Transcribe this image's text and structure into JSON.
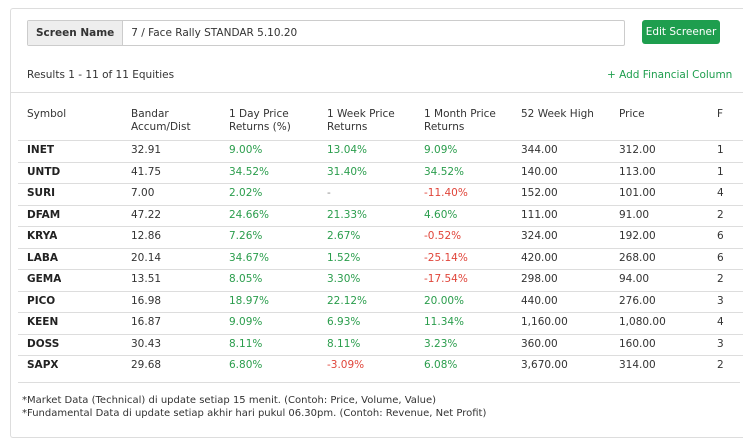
{
  "screen_name_label": "Screen Name",
  "screen_name_value": "7 / Face Rally STANDAR 5.10.20",
  "edit_button": "Edit Screener",
  "results_text": "Results 1 - 11 of 11 Equities",
  "add_column": "Add Financial Column",
  "table": {
    "headers": [
      "Symbol",
      "Bandar Accum/Dist",
      "1 Day Price Returns (%)",
      "1 Week Price Returns",
      "1 Month Price Returns",
      "52 Week High",
      "Price",
      "F"
    ],
    "rows": [
      [
        "INET",
        "32.91",
        "9.00%",
        "13.04%",
        "9.09%",
        "344.00",
        "312.00",
        "1"
      ],
      [
        "UNTD",
        "41.75",
        "34.52%",
        "31.40%",
        "34.52%",
        "140.00",
        "113.00",
        "1"
      ],
      [
        "SURI",
        "7.00",
        "2.02%",
        "-",
        "-11.40%",
        "152.00",
        "101.00",
        "4"
      ],
      [
        "DFAM",
        "47.22",
        "24.66%",
        "21.33%",
        "4.60%",
        "111.00",
        "91.00",
        "2"
      ],
      [
        "KRYA",
        "12.86",
        "7.26%",
        "2.67%",
        "-0.52%",
        "324.00",
        "192.00",
        "6"
      ],
      [
        "LABA",
        "20.14",
        "34.67%",
        "1.52%",
        "-25.14%",
        "420.00",
        "268.00",
        "6"
      ],
      [
        "GEMA",
        "13.51",
        "8.05%",
        "3.30%",
        "-17.54%",
        "298.00",
        "94.00",
        "2"
      ],
      [
        "PICO",
        "16.98",
        "18.97%",
        "22.12%",
        "20.00%",
        "440.00",
        "276.00",
        "3"
      ],
      [
        "KEEN",
        "16.87",
        "9.09%",
        "6.93%",
        "11.34%",
        "1,160.00",
        "1,080.00",
        "4"
      ],
      [
        "DOSS",
        "30.43",
        "8.11%",
        "8.11%",
        "3.23%",
        "360.00",
        "160.00",
        "3"
      ],
      [
        "SAPX",
        "29.68",
        "6.80%",
        "-3.09%",
        "6.08%",
        "3,670.00",
        "314.00",
        "2"
      ]
    ]
  },
  "footnotes": [
    "*Market Data (Technical) di update setiap 15 menit. (Contoh: Price, Volume, Value)",
    "*Fundamental Data di update setiap akhir hari pukul 06.30pm. (Contoh: Revenue, Net Profit)"
  ]
}
